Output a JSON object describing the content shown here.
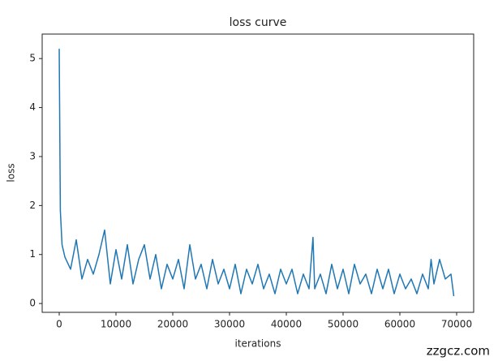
{
  "chart_data": {
    "type": "line",
    "title": "loss curve",
    "xlabel": "iterations",
    "ylabel": "loss",
    "x": [
      0,
      200,
      500,
      1000,
      2000,
      3000,
      4000,
      5000,
      6000,
      7000,
      8000,
      9000,
      10000,
      11000,
      12000,
      13000,
      14000,
      15000,
      16000,
      17000,
      18000,
      19000,
      20000,
      21000,
      22000,
      23000,
      24000,
      25000,
      26000,
      27000,
      28000,
      29000,
      30000,
      31000,
      32000,
      33000,
      34000,
      35000,
      36000,
      37000,
      38000,
      39000,
      40000,
      41000,
      42000,
      43000,
      44000,
      44700,
      45000,
      46000,
      47000,
      48000,
      49000,
      50000,
      51000,
      52000,
      53000,
      54000,
      55000,
      56000,
      57000,
      58000,
      59000,
      60000,
      61000,
      62000,
      63000,
      64000,
      65000,
      65500,
      66000,
      67000,
      68000,
      69000,
      69500
    ],
    "series": [
      {
        "name": "loss",
        "color": "#1f77b4",
        "values": [
          5.2,
          1.9,
          1.2,
          0.95,
          0.7,
          1.3,
          0.5,
          0.9,
          0.6,
          1.0,
          1.5,
          0.4,
          1.1,
          0.5,
          1.2,
          0.4,
          0.9,
          1.2,
          0.5,
          1.0,
          0.3,
          0.8,
          0.5,
          0.9,
          0.3,
          1.2,
          0.5,
          0.8,
          0.3,
          0.9,
          0.4,
          0.7,
          0.3,
          0.8,
          0.2,
          0.7,
          0.4,
          0.8,
          0.3,
          0.6,
          0.2,
          0.7,
          0.4,
          0.7,
          0.2,
          0.6,
          0.3,
          1.35,
          0.3,
          0.6,
          0.2,
          0.8,
          0.3,
          0.7,
          0.2,
          0.8,
          0.4,
          0.6,
          0.2,
          0.7,
          0.3,
          0.7,
          0.2,
          0.6,
          0.3,
          0.5,
          0.2,
          0.6,
          0.3,
          0.9,
          0.4,
          0.9,
          0.5,
          0.6,
          0.15
        ]
      }
    ],
    "xlim": [
      -3000,
      73000
    ],
    "ylim": [
      -0.18,
      5.5
    ],
    "xticks": [
      0,
      10000,
      20000,
      30000,
      40000,
      50000,
      60000,
      70000
    ],
    "yticks": [
      0,
      1,
      2,
      3,
      4,
      5
    ]
  },
  "watermark": "zzgcz.com"
}
